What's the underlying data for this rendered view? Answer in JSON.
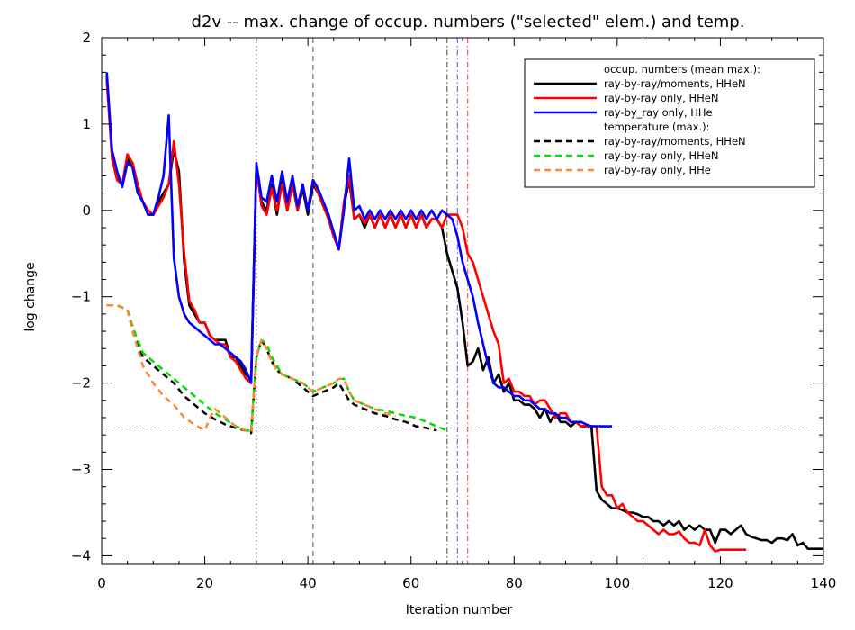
{
  "chart_data": {
    "type": "line",
    "title": "d2v -- max. change of occup. numbers (\"selected\" elem.) and temp.",
    "xlabel": "Iteration number",
    "ylabel": "log change",
    "xlim": [
      0,
      140
    ],
    "ylim": [
      -4.1,
      2
    ],
    "x_ticks": [
      0,
      20,
      40,
      60,
      80,
      100,
      120,
      140
    ],
    "y_ticks": [
      -4,
      -3,
      -2,
      -1,
      0,
      1,
      2
    ],
    "grid": false,
    "legend_position": "top-right",
    "legend": {
      "group1_header": "occup. numbers (mean max.):",
      "group2_header": "temperature (max.):"
    },
    "reference_lines": {
      "horizontal": [
        {
          "y": -2.52,
          "style": "dotted",
          "color": "#555555"
        }
      ],
      "vertical": [
        {
          "x": 30,
          "style": "dotted",
          "color": "#555555"
        },
        {
          "x": 41,
          "style": "dashed",
          "color": "#555555"
        },
        {
          "x": 67,
          "style": "dashdot",
          "color": "#444444"
        },
        {
          "x": 69,
          "style": "dashdot",
          "color": "#3355ff"
        },
        {
          "x": 71,
          "style": "dashdot",
          "color": "#ff3333"
        }
      ]
    },
    "series": [
      {
        "name": "ray-by-ray/moments, HHeN",
        "color": "#000000",
        "dash": "solid",
        "x": [
          1,
          2,
          3,
          4,
          5,
          6,
          7,
          8,
          9,
          10,
          11,
          12,
          13,
          14,
          15,
          16,
          17,
          18,
          19,
          20,
          21,
          22,
          23,
          24,
          25,
          26,
          27,
          28,
          29,
          30,
          31,
          32,
          33,
          34,
          35,
          36,
          37,
          38,
          39,
          40,
          41,
          42,
          43,
          44,
          45,
          46,
          47,
          48,
          49,
          50,
          51,
          52,
          53,
          54,
          55,
          56,
          57,
          58,
          59,
          60,
          61,
          62,
          63,
          64,
          65,
          66,
          67,
          68,
          69,
          70,
          71,
          72,
          73,
          74,
          75,
          76,
          77,
          78,
          79,
          80,
          81,
          82,
          83,
          84,
          85,
          86,
          87,
          88,
          89,
          90,
          91,
          92,
          93,
          94,
          95,
          96,
          97,
          98,
          99,
          100,
          101,
          102,
          103,
          104,
          105,
          106,
          107,
          108,
          109,
          110,
          111,
          112,
          113,
          114,
          115,
          116,
          117,
          118,
          119,
          120,
          121,
          122,
          123,
          124,
          125,
          126,
          127,
          128,
          129,
          130,
          131,
          132,
          133,
          134,
          135,
          136,
          137,
          138,
          139,
          140
        ],
        "y": [
          1.55,
          0.65,
          0.4,
          0.3,
          0.6,
          0.5,
          0.2,
          0.1,
          -0.05,
          -0.05,
          0.1,
          0.2,
          0.3,
          0.7,
          0.45,
          -0.6,
          -1.1,
          -1.2,
          -1.3,
          -1.3,
          -1.45,
          -1.5,
          -1.5,
          -1.5,
          -1.7,
          -1.7,
          -1.8,
          -1.9,
          -1.95,
          0.5,
          0.1,
          0.0,
          0.3,
          -0.05,
          0.35,
          0.0,
          0.3,
          0.0,
          0.25,
          -0.05,
          0.3,
          0.2,
          0.05,
          -0.1,
          -0.3,
          -0.45,
          0.05,
          0.35,
          -0.1,
          -0.05,
          -0.2,
          -0.05,
          -0.2,
          -0.05,
          -0.2,
          -0.05,
          -0.2,
          -0.05,
          -0.2,
          -0.05,
          -0.2,
          -0.05,
          -0.2,
          -0.1,
          -0.1,
          -0.2,
          -0.5,
          -0.7,
          -0.9,
          -1.3,
          -1.8,
          -1.75,
          -1.6,
          -1.85,
          -1.7,
          -2.0,
          -1.9,
          -2.1,
          -2.0,
          -2.2,
          -2.2,
          -2.25,
          -2.25,
          -2.3,
          -2.4,
          -2.3,
          -2.45,
          -2.35,
          -2.45,
          -2.45,
          -2.5,
          -2.45,
          -2.5,
          -2.5,
          -2.5,
          -3.25,
          -3.35,
          -3.4,
          -3.45,
          -3.45,
          -3.47,
          -3.5,
          -3.5,
          -3.52,
          -3.55,
          -3.55,
          -3.6,
          -3.6,
          -3.65,
          -3.6,
          -3.65,
          -3.6,
          -3.7,
          -3.65,
          -3.7,
          -3.65,
          -3.7,
          -3.7,
          -3.85,
          -3.7,
          -3.7,
          -3.75,
          -3.7,
          -3.65,
          -3.75,
          -3.78,
          -3.8,
          -3.82,
          -3.82,
          -3.85,
          -3.8,
          -3.8,
          -3.82,
          -3.75,
          -3.88,
          -3.85,
          -3.92,
          -3.92,
          -3.92,
          -3.92
        ],
        "x_end": 140
      },
      {
        "name": "ray-by-ray only, HHeN",
        "color": "#ff0000",
        "dash": "solid",
        "x": [
          1,
          2,
          3,
          4,
          5,
          6,
          7,
          8,
          9,
          10,
          11,
          12,
          13,
          14,
          15,
          16,
          17,
          18,
          19,
          20,
          21,
          22,
          23,
          24,
          25,
          26,
          27,
          28,
          29,
          30,
          31,
          32,
          33,
          34,
          35,
          36,
          37,
          38,
          39,
          40,
          41,
          42,
          43,
          44,
          45,
          46,
          47,
          48,
          49,
          50,
          51,
          52,
          53,
          54,
          55,
          56,
          57,
          58,
          59,
          60,
          61,
          62,
          63,
          64,
          65,
          66,
          67,
          68,
          69,
          70,
          71,
          72,
          73,
          74,
          75,
          76,
          77,
          78,
          79,
          80,
          81,
          82,
          83,
          84,
          85,
          86,
          87,
          88,
          89,
          90,
          91,
          92,
          93,
          94,
          95,
          96,
          97,
          98,
          99,
          100,
          101,
          102,
          103,
          104,
          105,
          106,
          107,
          108,
          109,
          110,
          111,
          112,
          113,
          114,
          115,
          116,
          117,
          118,
          119,
          120,
          121,
          122,
          123,
          124,
          125
        ],
        "y": [
          1.5,
          0.6,
          0.35,
          0.3,
          0.65,
          0.55,
          0.3,
          0.1,
          0.0,
          -0.05,
          0.05,
          0.15,
          0.3,
          0.8,
          0.3,
          -0.5,
          -1.05,
          -1.15,
          -1.3,
          -1.3,
          -1.45,
          -1.5,
          -1.55,
          -1.55,
          -1.7,
          -1.75,
          -1.85,
          -1.95,
          -2.0,
          0.5,
          0.05,
          -0.05,
          0.25,
          0.0,
          0.3,
          0.0,
          0.3,
          0.0,
          0.3,
          0.0,
          0.35,
          0.2,
          0.05,
          -0.1,
          -0.3,
          -0.45,
          0.1,
          0.4,
          -0.1,
          -0.05,
          -0.15,
          -0.05,
          -0.2,
          -0.05,
          -0.2,
          -0.05,
          -0.2,
          -0.05,
          -0.2,
          -0.05,
          -0.2,
          -0.05,
          -0.2,
          -0.1,
          -0.1,
          -0.2,
          -0.05,
          -0.05,
          -0.05,
          -0.2,
          -0.5,
          -0.6,
          -0.8,
          -1.0,
          -1.2,
          -1.4,
          -1.55,
          -2.0,
          -1.95,
          -2.1,
          -2.1,
          -2.15,
          -2.15,
          -2.25,
          -2.2,
          -2.2,
          -2.3,
          -2.4,
          -2.35,
          -2.35,
          -2.45,
          -2.45,
          -2.5,
          -2.5,
          -2.5,
          -2.5,
          -3.2,
          -3.3,
          -3.3,
          -3.45,
          -3.4,
          -3.5,
          -3.55,
          -3.6,
          -3.6,
          -3.65,
          -3.7,
          -3.75,
          -3.7,
          -3.75,
          -3.75,
          -3.72,
          -3.8,
          -3.85,
          -3.85,
          -3.88,
          -3.7,
          -3.88,
          -3.95,
          -3.93,
          -3.93,
          -3.93,
          -3.93,
          -3.93,
          -3.93
        ]
      },
      {
        "name": "ray-by_ray only, HHe",
        "color": "#0000ff",
        "dash": "solid",
        "x": [
          1,
          2,
          3,
          4,
          5,
          6,
          7,
          8,
          9,
          10,
          11,
          12,
          13,
          14,
          15,
          16,
          17,
          18,
          19,
          20,
          21,
          22,
          23,
          24,
          25,
          26,
          27,
          28,
          29,
          30,
          31,
          32,
          33,
          34,
          35,
          36,
          37,
          38,
          39,
          40,
          41,
          42,
          43,
          44,
          45,
          46,
          47,
          48,
          49,
          50,
          51,
          52,
          53,
          54,
          55,
          56,
          57,
          58,
          59,
          60,
          61,
          62,
          63,
          64,
          65,
          66,
          67,
          68,
          69,
          70,
          71,
          72,
          73,
          74,
          75,
          76,
          77,
          78,
          79,
          80,
          81,
          82,
          83,
          84,
          85,
          86,
          87,
          88,
          89,
          90,
          91,
          92,
          93,
          94,
          95,
          96,
          97,
          98,
          99
        ],
        "y": [
          1.6,
          0.7,
          0.45,
          0.27,
          0.55,
          0.5,
          0.2,
          0.1,
          -0.05,
          -0.05,
          0.15,
          0.4,
          1.1,
          -0.55,
          -1.0,
          -1.2,
          -1.3,
          -1.35,
          -1.4,
          -1.45,
          -1.5,
          -1.55,
          -1.55,
          -1.6,
          -1.65,
          -1.7,
          -1.75,
          -1.85,
          -2.0,
          0.55,
          0.15,
          0.1,
          0.4,
          0.1,
          0.45,
          0.1,
          0.4,
          0.05,
          0.3,
          0.0,
          0.35,
          0.25,
          0.1,
          -0.05,
          -0.25,
          -0.45,
          0.0,
          0.6,
          0.0,
          0.05,
          -0.1,
          0.0,
          -0.1,
          0.0,
          -0.1,
          0.0,
          -0.1,
          0.0,
          -0.1,
          0.0,
          -0.1,
          0.0,
          -0.1,
          0.0,
          -0.1,
          0.0,
          -0.05,
          -0.1,
          -0.3,
          -0.6,
          -0.8,
          -1.0,
          -1.3,
          -1.55,
          -1.8,
          -2.0,
          -2.05,
          -2.05,
          -2.1,
          -2.15,
          -2.15,
          -2.2,
          -2.2,
          -2.25,
          -2.3,
          -2.3,
          -2.35,
          -2.35,
          -2.4,
          -2.4,
          -2.45,
          -2.45,
          -2.45,
          -2.48,
          -2.5,
          -2.5,
          -2.5,
          -2.5,
          -2.5
        ]
      },
      {
        "name": "ray-by-ray/moments, HHeN",
        "color": "#000000",
        "dash": "dashed",
        "group": "temperature",
        "x": [
          1,
          3,
          5,
          6,
          8,
          10,
          12,
          14,
          16,
          18,
          20,
          22,
          24,
          26,
          28,
          29,
          30,
          31,
          32,
          33,
          34,
          35,
          37,
          39,
          41,
          43,
          45,
          46,
          47,
          48,
          49,
          51,
          53,
          55,
          57,
          59,
          61,
          63,
          65
        ],
        "y": [
          -1.1,
          -1.1,
          -1.15,
          -1.35,
          -1.7,
          -1.8,
          -1.9,
          -2.0,
          -2.15,
          -2.25,
          -2.35,
          -2.42,
          -2.48,
          -2.52,
          -2.55,
          -2.58,
          -1.7,
          -1.5,
          -1.6,
          -1.75,
          -1.85,
          -1.9,
          -1.95,
          -2.05,
          -2.15,
          -2.1,
          -2.05,
          -2.0,
          -2.1,
          -2.2,
          -2.25,
          -2.3,
          -2.35,
          -2.38,
          -2.42,
          -2.45,
          -2.5,
          -2.52,
          -2.55
        ]
      },
      {
        "name": "ray-by-ray only, HHeN",
        "color": "#00dd00",
        "dash": "dashed",
        "group": "temperature",
        "x": [
          1,
          3,
          5,
          6,
          8,
          10,
          12,
          14,
          16,
          18,
          20,
          22,
          24,
          26,
          28,
          29,
          30,
          31,
          32,
          33,
          34,
          35,
          37,
          39,
          41,
          43,
          45,
          46,
          47,
          48,
          49,
          51,
          53,
          55,
          57,
          59,
          61,
          63,
          65,
          67
        ],
        "y": [
          -1.1,
          -1.1,
          -1.15,
          -1.35,
          -1.65,
          -1.75,
          -1.85,
          -1.95,
          -2.05,
          -2.15,
          -2.25,
          -2.35,
          -2.42,
          -2.5,
          -2.55,
          -2.55,
          -1.7,
          -1.5,
          -1.55,
          -1.7,
          -1.8,
          -1.9,
          -1.95,
          -2.0,
          -2.1,
          -2.05,
          -2.0,
          -1.95,
          -1.95,
          -2.1,
          -2.2,
          -2.25,
          -2.3,
          -2.32,
          -2.35,
          -2.38,
          -2.4,
          -2.45,
          -2.5,
          -2.55
        ]
      },
      {
        "name": "ray-by-ray only, HHe",
        "color": "#ff8833",
        "dash": "dashed",
        "group": "temperature",
        "x": [
          1,
          3,
          5,
          6,
          8,
          10,
          12,
          14,
          16,
          18,
          20,
          21,
          22,
          24,
          26,
          28,
          29,
          30,
          31,
          32,
          33,
          34,
          35,
          37,
          39,
          41,
          43,
          45,
          46,
          47,
          48,
          49,
          51,
          53,
          55,
          57
        ],
        "y": [
          -1.1,
          -1.1,
          -1.15,
          -1.4,
          -1.8,
          -2.0,
          -2.15,
          -2.25,
          -2.4,
          -2.48,
          -2.55,
          -2.4,
          -2.3,
          -2.4,
          -2.5,
          -2.55,
          -2.55,
          -1.7,
          -1.5,
          -1.6,
          -1.75,
          -1.85,
          -1.9,
          -1.95,
          -2.0,
          -2.1,
          -2.05,
          -2.0,
          -1.95,
          -1.95,
          -2.1,
          -2.2,
          -2.25,
          -2.3,
          -2.35,
          -2.38
        ]
      }
    ]
  }
}
